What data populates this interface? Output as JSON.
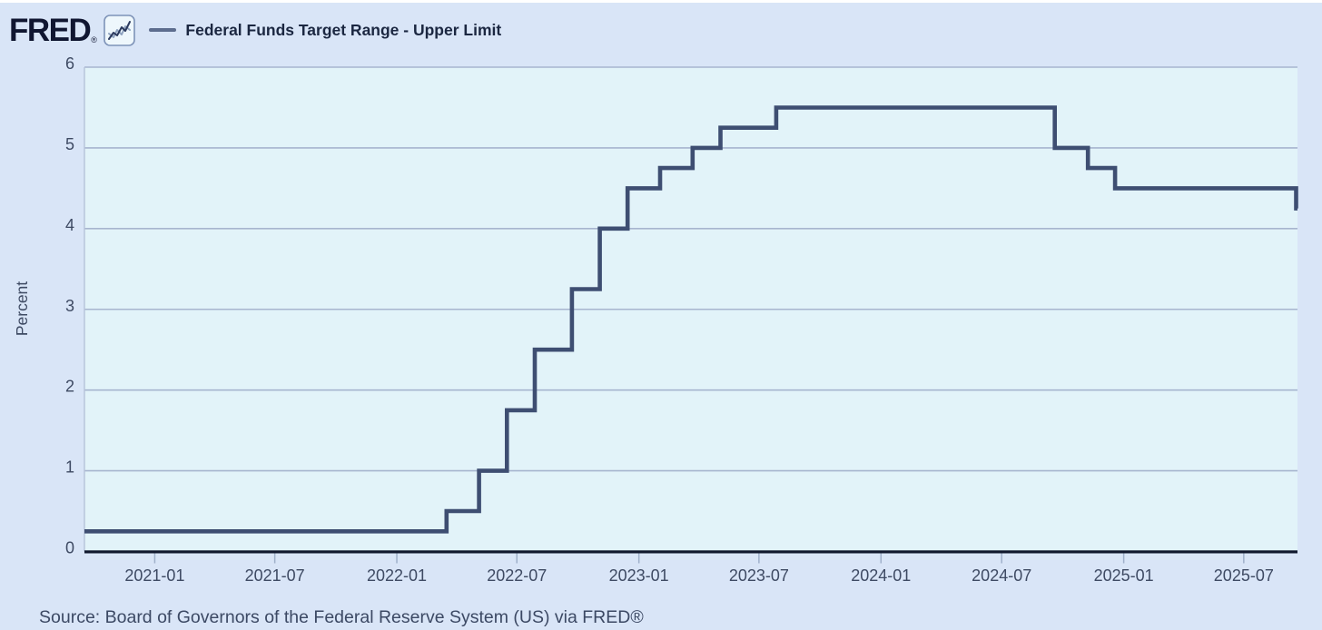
{
  "header": {
    "logo_text": "FRED",
    "registered_mark": "®",
    "icon": "sparkline-chart-icon",
    "legend": {
      "series_label": "Federal Funds Target Range - Upper Limit",
      "dash_color": "#5d6d8e"
    }
  },
  "chart_data": {
    "type": "line",
    "step": true,
    "title": "Federal Funds Target Range - Upper Limit",
    "xlabel": "",
    "ylabel": "Percent",
    "ylim": [
      0,
      6
    ],
    "y_ticks": [
      0,
      1,
      2,
      3,
      4,
      5,
      6
    ],
    "x_ticks": [
      "2021-01",
      "2021-07",
      "2022-01",
      "2022-07",
      "2023-01",
      "2023-07",
      "2024-01",
      "2024-07",
      "2025-01",
      "2025-07"
    ],
    "x_range": [
      "2020-09-17",
      "2025-09-20"
    ],
    "grid": true,
    "legend_position": "top-left",
    "series": [
      {
        "name": "Federal Funds Target Range - Upper Limit",
        "color": "#3e4e72",
        "points": [
          {
            "date": "2020-09-17",
            "value": 0.25
          },
          {
            "date": "2022-03-17",
            "value": 0.5
          },
          {
            "date": "2022-05-05",
            "value": 1.0
          },
          {
            "date": "2022-06-16",
            "value": 1.75
          },
          {
            "date": "2022-07-28",
            "value": 2.5
          },
          {
            "date": "2022-09-22",
            "value": 3.25
          },
          {
            "date": "2022-11-03",
            "value": 4.0
          },
          {
            "date": "2022-12-15",
            "value": 4.5
          },
          {
            "date": "2023-02-02",
            "value": 4.75
          },
          {
            "date": "2023-03-23",
            "value": 5.0
          },
          {
            "date": "2023-05-04",
            "value": 5.25
          },
          {
            "date": "2023-07-27",
            "value": 5.5
          },
          {
            "date": "2024-09-19",
            "value": 5.0
          },
          {
            "date": "2024-11-08",
            "value": 4.75
          },
          {
            "date": "2024-12-19",
            "value": 4.5
          },
          {
            "date": "2025-09-18",
            "value": 4.25
          }
        ]
      }
    ]
  },
  "source_line": "Source: Board of Governors of the Federal Reserve System (US) via FRED®",
  "colors": {
    "outer_bg": "#d9e5f7",
    "plot_bg": "#e2f3f9",
    "grid": "#a7b5cf",
    "axis": "#10182e",
    "tick": "#9fb0ca",
    "label": "#3e4a63",
    "line": "#3e4e72"
  }
}
